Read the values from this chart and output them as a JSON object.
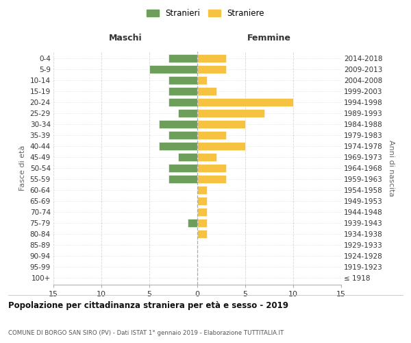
{
  "age_groups": [
    "100+",
    "95-99",
    "90-94",
    "85-89",
    "80-84",
    "75-79",
    "70-74",
    "65-69",
    "60-64",
    "55-59",
    "50-54",
    "45-49",
    "40-44",
    "35-39",
    "30-34",
    "25-29",
    "20-24",
    "15-19",
    "10-14",
    "5-9",
    "0-4"
  ],
  "birth_years": [
    "≤ 1918",
    "1919-1923",
    "1924-1928",
    "1929-1933",
    "1934-1938",
    "1939-1943",
    "1944-1948",
    "1949-1953",
    "1954-1958",
    "1959-1963",
    "1964-1968",
    "1969-1973",
    "1974-1978",
    "1979-1983",
    "1984-1988",
    "1989-1993",
    "1994-1998",
    "1999-2003",
    "2004-2008",
    "2009-2013",
    "2014-2018"
  ],
  "maschi": [
    0,
    0,
    0,
    0,
    0,
    1,
    0,
    0,
    0,
    3,
    3,
    2,
    4,
    3,
    4,
    2,
    3,
    3,
    3,
    5,
    3
  ],
  "femmine": [
    0,
    0,
    0,
    0,
    1,
    1,
    1,
    1,
    1,
    3,
    3,
    2,
    5,
    3,
    5,
    7,
    10,
    2,
    1,
    3,
    3
  ],
  "color_maschi": "#6d9e5b",
  "color_femmine": "#f5c242",
  "title": "Popolazione per cittadinanza straniera per età e sesso - 2019",
  "subtitle": "COMUNE DI BORGO SAN SIRO (PV) - Dati ISTAT 1° gennaio 2019 - Elaborazione TUTTITALIA.IT",
  "ylabel_left": "Fasce di età",
  "ylabel_right": "Anni di nascita",
  "legend_maschi": "Stranieri",
  "legend_femmine": "Straniere",
  "xlim": 15,
  "background_color": "#ffffff",
  "grid_color": "#cccccc",
  "header_maschi": "Maschi",
  "header_femmine": "Femmine"
}
